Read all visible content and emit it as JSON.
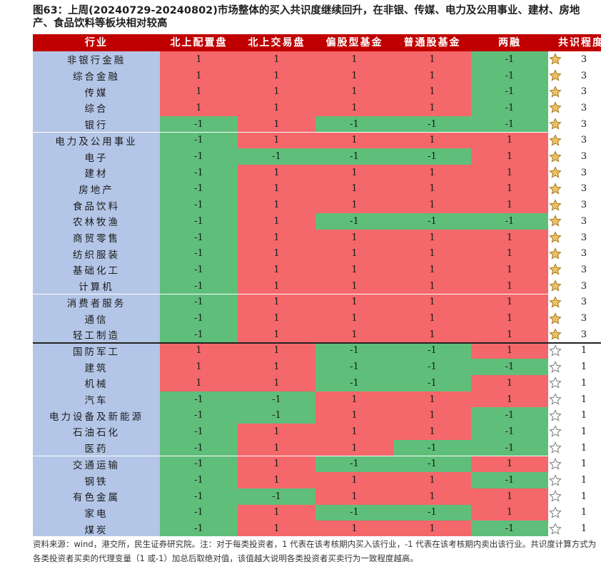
{
  "title": {
    "line1": "图63：上周(20240729-20240802)市场整体的买入共识度继续回升，在非银、传媒、电力及公用事业、建材、房地",
    "line2": "产、食品饮料等板块相对较高"
  },
  "columns": [
    "行业",
    "北上配置盘",
    "北上交易盘",
    "偏股型基金",
    "普通股基金",
    "两融",
    "共识程度"
  ],
  "colors": {
    "buy": "#f4676a",
    "sell": "#5fbe7a",
    "industry_bg": "#b4c6e7",
    "header_bg": "#c00000",
    "star_filled": "#f0c060"
  },
  "rows": [
    {
      "industry": "非银行金融",
      "values": [
        1,
        1,
        1,
        1,
        -1
      ],
      "consensus": 3
    },
    {
      "industry": "综合金融",
      "values": [
        1,
        1,
        1,
        1,
        -1
      ],
      "consensus": 3
    },
    {
      "industry": "传媒",
      "values": [
        1,
        1,
        1,
        1,
        -1
      ],
      "consensus": 3
    },
    {
      "industry": "综合",
      "values": [
        1,
        1,
        1,
        1,
        -1
      ],
      "consensus": 3
    },
    {
      "industry": "银行",
      "values": [
        -1,
        1,
        -1,
        -1,
        -1
      ],
      "consensus": 3
    },
    {
      "industry": "电力及公用事业",
      "values": [
        -1,
        1,
        1,
        1,
        1
      ],
      "consensus": 3
    },
    {
      "industry": "电子",
      "values": [
        -1,
        -1,
        -1,
        -1,
        1
      ],
      "consensus": 3
    },
    {
      "industry": "建材",
      "values": [
        -1,
        1,
        1,
        1,
        1
      ],
      "consensus": 3
    },
    {
      "industry": "房地产",
      "values": [
        -1,
        1,
        1,
        1,
        1
      ],
      "consensus": 3
    },
    {
      "industry": "食品饮料",
      "values": [
        -1,
        1,
        1,
        1,
        1
      ],
      "consensus": 3
    },
    {
      "industry": "农林牧渔",
      "values": [
        -1,
        1,
        -1,
        -1,
        -1
      ],
      "consensus": 3
    },
    {
      "industry": "商贸零售",
      "values": [
        -1,
        1,
        1,
        1,
        1
      ],
      "consensus": 3
    },
    {
      "industry": "纺织服装",
      "values": [
        -1,
        1,
        1,
        1,
        1
      ],
      "consensus": 3
    },
    {
      "industry": "基础化工",
      "values": [
        -1,
        1,
        1,
        1,
        1
      ],
      "consensus": 3
    },
    {
      "industry": "计算机",
      "values": [
        -1,
        1,
        1,
        1,
        1
      ],
      "consensus": 3
    },
    {
      "industry": "消费者服务",
      "values": [
        -1,
        1,
        1,
        1,
        1
      ],
      "consensus": 3
    },
    {
      "industry": "通信",
      "values": [
        -1,
        1,
        1,
        1,
        1
      ],
      "consensus": 3
    },
    {
      "industry": "轻工制造",
      "values": [
        -1,
        1,
        1,
        1,
        1
      ],
      "consensus": 3
    },
    {
      "industry": "国防军工",
      "values": [
        1,
        1,
        -1,
        -1,
        1
      ],
      "consensus": 1
    },
    {
      "industry": "建筑",
      "values": [
        1,
        1,
        -1,
        -1,
        -1
      ],
      "consensus": 1
    },
    {
      "industry": "机械",
      "values": [
        1,
        1,
        -1,
        -1,
        1
      ],
      "consensus": 1
    },
    {
      "industry": "汽车",
      "values": [
        -1,
        -1,
        1,
        1,
        1
      ],
      "consensus": 1
    },
    {
      "industry": "电力设备及新能源",
      "values": [
        -1,
        -1,
        1,
        1,
        -1
      ],
      "consensus": 1
    },
    {
      "industry": "石油石化",
      "values": [
        -1,
        1,
        1,
        1,
        -1
      ],
      "consensus": 1
    },
    {
      "industry": "医药",
      "values": [
        -1,
        1,
        1,
        -1,
        -1
      ],
      "consensus": 1
    },
    {
      "industry": "交通运输",
      "values": [
        -1,
        1,
        -1,
        -1,
        1
      ],
      "consensus": 1
    },
    {
      "industry": "钢铁",
      "values": [
        -1,
        1,
        1,
        1,
        -1
      ],
      "consensus": 1
    },
    {
      "industry": "有色金属",
      "values": [
        -1,
        -1,
        1,
        1,
        1
      ],
      "consensus": 1
    },
    {
      "industry": "家电",
      "values": [
        -1,
        1,
        -1,
        -1,
        1
      ],
      "consensus": 1
    },
    {
      "industry": "煤炭",
      "values": [
        -1,
        1,
        1,
        1,
        -1
      ],
      "consensus": 1
    }
  ],
  "note": {
    "line1": "资料来源：wind，港交所，民生证券研究院。注：对于每类投资者，1 代表在该考核期内买入该行业，-1 代表在该考核期内卖出该行业。共识度计算方式为",
    "line2": "各类投资者买卖的代理变量（1 或-1）加总后取绝对值，该值越大说明各类投资者买卖行为一致程度越高。"
  }
}
